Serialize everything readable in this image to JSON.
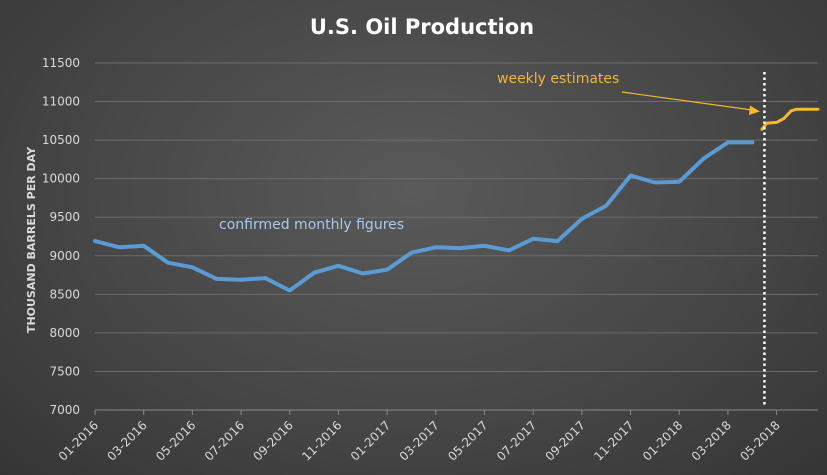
{
  "chart_data": {
    "type": "line",
    "title": "U.S. Oil Production",
    "ylabel": "THOUSAND BARRELS PER DAY",
    "xlabel": "",
    "ylim": [
      7000,
      11500
    ],
    "yticks": [
      7000,
      7500,
      8000,
      8500,
      9000,
      9500,
      10000,
      10500,
      11000,
      11500
    ],
    "xtick_labels": [
      "01-2016",
      "03-2016",
      "05-2016",
      "07-2016",
      "09-2016",
      "11-2016",
      "01-2017",
      "03-2017",
      "05-2017",
      "07-2017",
      "09-2017",
      "11-2017",
      "01-2018",
      "03-2018",
      "05-2018"
    ],
    "grid": true,
    "colors": {
      "monthly": "#5b9bd5",
      "weekly": "#f5b82e",
      "divider": "#ffffff",
      "arrow": "#f5b82e"
    },
    "series": [
      {
        "key": "monthly",
        "x": [
          "01-2016",
          "02-2016",
          "03-2016",
          "04-2016",
          "05-2016",
          "06-2016",
          "07-2016",
          "08-2016",
          "09-2016",
          "10-2016",
          "11-2016",
          "12-2016",
          "01-2017",
          "02-2017",
          "03-2017",
          "04-2017",
          "05-2017",
          "06-2017",
          "07-2017",
          "08-2017",
          "09-2017",
          "10-2017",
          "11-2017",
          "12-2017",
          "01-2018",
          "02-2018",
          "03-2018",
          "04-2018"
        ],
        "values": [
          9190,
          9110,
          9130,
          8910,
          8850,
          8700,
          8690,
          8710,
          8550,
          8780,
          8870,
          8770,
          8820,
          9040,
          9110,
          9100,
          9130,
          9070,
          9220,
          9190,
          9480,
          9650,
          10040,
          9950,
          9960,
          10260,
          10470,
          10470
        ]
      },
      {
        "key": "weekly",
        "x": [
          27.4,
          27.6,
          28.0,
          28.3,
          28.6,
          28.8,
          29.1,
          29.4,
          29.7
        ],
        "values": [
          10640,
          10720,
          10730,
          10780,
          10880,
          10900,
          10900,
          10900,
          10900
        ]
      }
    ],
    "divider_x": "04-2018",
    "annotations": [
      {
        "key": "monthly",
        "text": "confirmed monthly figures"
      },
      {
        "key": "weekly",
        "text": "weekly estimates"
      }
    ]
  }
}
